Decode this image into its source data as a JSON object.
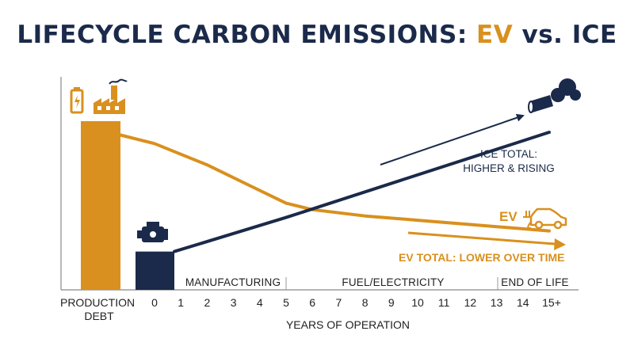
{
  "title_main": "LIFECYCLE CARBON EMISSIONS: ",
  "title_ev": "EV",
  "title_rest": " vs. ICE",
  "chart_data": {
    "type": "line",
    "title": "LIFECYCLE CARBON EMISSIONS: EV vs. ICE",
    "xlabel": "YEARS OF OPERATION",
    "ylabel": "",
    "x_ticks": [
      "0",
      "1",
      "2",
      "3",
      "4",
      "5",
      "6",
      "7",
      "8",
      "9",
      "10",
      "11",
      "12",
      "13",
      "14",
      "15+"
    ],
    "bar_category": "PRODUCTION DEBT",
    "phases": [
      "MANUFACTURING",
      "FUEL/ELECTRICITY",
      "END OF LIFE"
    ],
    "bars": [
      {
        "name": "EV",
        "value": 100
      },
      {
        "name": "ICE",
        "value": 44
      }
    ],
    "series": [
      {
        "name": "EV",
        "color": "#d9901e",
        "x": [
          -1,
          0,
          2,
          4,
          5,
          6,
          8,
          10,
          12,
          14,
          15
        ],
        "y": [
          92,
          88,
          78,
          66,
          60,
          57,
          54,
          52,
          50,
          48,
          47
        ]
      },
      {
        "name": "ICE",
        "color": "#1b2a4a",
        "x": [
          0,
          5,
          15
        ],
        "y": [
          44,
          60,
          100
        ]
      }
    ],
    "annotations": [
      "ICE TOTAL:",
      "HIGHER & RISING",
      "EV",
      "EV TOTAL: LOWER OVER TIME"
    ],
    "grid": false,
    "legend": "none"
  },
  "colors": {
    "ev": "#d9901e",
    "ice": "#1b2a4a",
    "axis": "#888888"
  },
  "icons": [
    "battery-icon",
    "factory-icon",
    "engine-icon",
    "exhaust-smoke-icon",
    "ev-car-icon"
  ]
}
